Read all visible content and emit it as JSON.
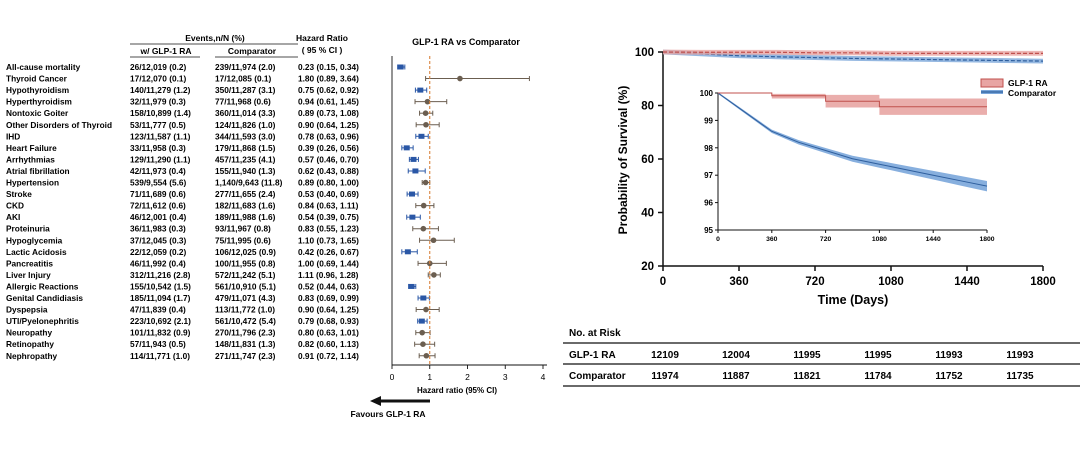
{
  "forest": {
    "header": {
      "events": "Events,n/N (%)",
      "glp1": "w/ GLP-1 RA",
      "comp": "Comparator",
      "hr": "Hazard Ratio",
      "ci": "( 95 % CI )"
    },
    "title": "GLP-1 RA vs Comparator",
    "xlabel": "Hazard ratio (95% CI)",
    "arrow_label": "Favours GLP-1 RA",
    "xticks": [
      "0",
      "1",
      "2",
      "3",
      "4"
    ],
    "xlim": [
      0,
      4
    ],
    "reference_line": 1,
    "colors": {
      "significant": "#2a57a6",
      "nonsignificant": "#6b5e50",
      "reference": "#d9823b"
    },
    "rows": [
      {
        "label": "All-cause mortality",
        "glp1": "26/12,019 (0.2)",
        "comp": "239/11,974 (2.0)",
        "hr_text": "0.23 (0.15, 0.34)",
        "hr": 0.23,
        "lo": 0.15,
        "hi": 0.34
      },
      {
        "label": "Thyroid Cancer",
        "glp1": "17/12,070 (0.1)",
        "comp": "17/12,085 (0.1)",
        "hr_text": "1.80 (0.89, 3.64)",
        "hr": 1.8,
        "lo": 0.89,
        "hi": 3.64
      },
      {
        "label": "Hypothyroidism",
        "glp1": "140/11,279 (1.2)",
        "comp": "350/11,287 (3.1)",
        "hr_text": "0.75 (0.62, 0.92)",
        "hr": 0.75,
        "lo": 0.62,
        "hi": 0.92
      },
      {
        "label": "Hyperthyroidism",
        "glp1": "32/11,979 (0.3)",
        "comp": "77/11,968 (0.6)",
        "hr_text": "0.94 (0.61, 1.45)",
        "hr": 0.94,
        "lo": 0.61,
        "hi": 1.45
      },
      {
        "label": "Nontoxic Goiter",
        "glp1": "158/10,899 (1.4)",
        "comp": "360/11,014 (3.3)",
        "hr_text": "0.89 (0.73, 1.08)",
        "hr": 0.89,
        "lo": 0.73,
        "hi": 1.08
      },
      {
        "label": "Other Disorders of Thyroid",
        "glp1": "53/11,777 (0.5)",
        "comp": "124/11,826 (1.0)",
        "hr_text": "0.90 (0.64, 1.25)",
        "hr": 0.9,
        "lo": 0.64,
        "hi": 1.25
      },
      {
        "label": "IHD",
        "glp1": "123/11,587 (1.1)",
        "comp": "344/11,593 (3.0)",
        "hr_text": "0.78 (0.63, 0.96)",
        "hr": 0.78,
        "lo": 0.63,
        "hi": 0.96
      },
      {
        "label": "Heart Failure",
        "glp1": "33/11,958 (0.3)",
        "comp": "179/11,868 (1.5)",
        "hr_text": "0.39 (0.26, 0.56)",
        "hr": 0.39,
        "lo": 0.26,
        "hi": 0.56
      },
      {
        "label": "Arrhythmias",
        "glp1": "129/11,290 (1.1)",
        "comp": "457/11,235 (4.1)",
        "hr_text": "0.57 (0.46, 0.70)",
        "hr": 0.57,
        "lo": 0.46,
        "hi": 0.7
      },
      {
        "label": "Atrial fibrillation",
        "glp1": "42/11,973 (0.4)",
        "comp": "155/11,940 (1.3)",
        "hr_text": "0.62 (0.43, 0.88)",
        "hr": 0.62,
        "lo": 0.43,
        "hi": 0.88
      },
      {
        "label": "Hypertension",
        "glp1": "539/9,554 (5.6)",
        "comp": "1,140/9,643 (11.8)",
        "hr_text": "0.89 (0.80, 1.00)",
        "hr": 0.89,
        "lo": 0.8,
        "hi": 1.0
      },
      {
        "label": "Stroke",
        "glp1": "71/11,689 (0.6)",
        "comp": "277/11,655 (2.4)",
        "hr_text": "0.53 (0.40, 0.69)",
        "hr": 0.53,
        "lo": 0.4,
        "hi": 0.69
      },
      {
        "label": "CKD",
        "glp1": "72/11,612 (0.6)",
        "comp": "182/11,683 (1.6)",
        "hr_text": "0.84 (0.63, 1.11)",
        "hr": 0.84,
        "lo": 0.63,
        "hi": 1.11
      },
      {
        "label": "AKI",
        "glp1": "46/12,001 (0.4)",
        "comp": "189/11,988 (1.6)",
        "hr_text": "0.54 (0.39, 0.75)",
        "hr": 0.54,
        "lo": 0.39,
        "hi": 0.75
      },
      {
        "label": "Proteinuria",
        "glp1": "36/11,983 (0.3)",
        "comp": "93/11,967 (0.8)",
        "hr_text": "0.83 (0.55, 1.23)",
        "hr": 0.83,
        "lo": 0.55,
        "hi": 1.23
      },
      {
        "label": "Hypoglycemia",
        "glp1": "37/12,045 (0.3)",
        "comp": "75/11,995 (0.6)",
        "hr_text": "1.10 (0.73, 1.65)",
        "hr": 1.1,
        "lo": 0.73,
        "hi": 1.65
      },
      {
        "label": "Lactic Acidosis",
        "glp1": "22/12,059 (0.2)",
        "comp": "106/12,025 (0.9)",
        "hr_text": "0.42 (0.26, 0.67)",
        "hr": 0.42,
        "lo": 0.26,
        "hi": 0.67
      },
      {
        "label": "Pancreatitis",
        "glp1": "46/11,992 (0.4)",
        "comp": "100/11,955 (0.8)",
        "hr_text": "1.00 (0.69, 1.44)",
        "hr": 1.0,
        "lo": 0.69,
        "hi": 1.44
      },
      {
        "label": "Liver Injury",
        "glp1": "312/11,216 (2.8)",
        "comp": "572/11,242 (5.1)",
        "hr_text": "1.11 (0.96, 1.28)",
        "hr": 1.11,
        "lo": 0.96,
        "hi": 1.28
      },
      {
        "label": "Allergic Reactions",
        "glp1": "155/10,542 (1.5)",
        "comp": "561/10,910 (5.1)",
        "hr_text": "0.52 (0.44, 0.63)",
        "hr": 0.52,
        "lo": 0.44,
        "hi": 0.63
      },
      {
        "label": "Genital Candidiasis",
        "glp1": "185/11,094 (1.7)",
        "comp": "479/11,071 (4.3)",
        "hr_text": "0.83 (0.69, 0.99)",
        "hr": 0.83,
        "lo": 0.69,
        "hi": 0.99
      },
      {
        "label": "Dyspepsia",
        "glp1": "47/11,839 (0.4)",
        "comp": "113/11,772 (1.0)",
        "hr_text": "0.90 (0.64, 1.25)",
        "hr": 0.9,
        "lo": 0.64,
        "hi": 1.25
      },
      {
        "label": "UTI/Pyelonephritis",
        "glp1": "223/10,692 (2.1)",
        "comp": "561/10,472 (5.4)",
        "hr_text": "0.79 (0.68, 0.93)",
        "hr": 0.79,
        "lo": 0.68,
        "hi": 0.93
      },
      {
        "label": "Neuropathy",
        "glp1": "101/11,832 (0.9)",
        "comp": "270/11,796 (2.3)",
        "hr_text": "0.80 (0.63, 1.01)",
        "hr": 0.8,
        "lo": 0.63,
        "hi": 1.01
      },
      {
        "label": "Retinopathy",
        "glp1": "57/11,943 (0.5)",
        "comp": "148/11,831 (1.3)",
        "hr_text": "0.82 (0.60, 1.13)",
        "hr": 0.82,
        "lo": 0.6,
        "hi": 1.13
      },
      {
        "label": "Nephropathy",
        "glp1": "114/11,771 (1.0)",
        "comp": "271/11,747 (2.3)",
        "hr_text": "0.91 (0.72, 1.14)",
        "hr": 0.91,
        "lo": 0.72,
        "hi": 1.14
      }
    ]
  },
  "km": {
    "ylabel": "Probability of Survival (%)",
    "xlabel": "Time (Days)",
    "xticks": [
      "0",
      "360",
      "720",
      "1080",
      "1440",
      "1800"
    ],
    "yticks": [
      "20",
      "40",
      "60",
      "80",
      "100"
    ],
    "xlim": [
      0,
      1800
    ],
    "ylim": [
      20,
      100
    ],
    "legend": [
      "GLP-1 RA",
      "Comparator"
    ],
    "colors": {
      "glp1": "#c0504d",
      "glp1_band": "#e8a5a3",
      "comp": "#2f5f9e",
      "comp_band": "#7aa6da"
    },
    "inset": {
      "xticks": [
        "0",
        "360",
        "720",
        "1080",
        "1440",
        "1800"
      ],
      "yticks": [
        "95",
        "96",
        "97",
        "98",
        "99",
        "100"
      ],
      "xlim": [
        0,
        1800
      ],
      "ylim": [
        95,
        100
      ]
    },
    "risk": {
      "title": "No. at Risk",
      "rows": [
        {
          "label": "GLP-1 RA",
          "values": [
            "12109",
            "12004",
            "11995",
            "11995",
            "11993",
            "11993"
          ]
        },
        {
          "label": "Comparator",
          "values": [
            "11974",
            "11887",
            "11821",
            "11784",
            "11752",
            "11735"
          ]
        }
      ]
    }
  },
  "chart_data": [
    {
      "type": "forest",
      "title": "GLP-1 RA vs Comparator",
      "xlabel": "Hazard ratio (95% CI)",
      "xlim": [
        0,
        4
      ],
      "categories": [
        "All-cause mortality",
        "Thyroid Cancer",
        "Hypothyroidism",
        "Hyperthyroidism",
        "Nontoxic Goiter",
        "Other Disorders of Thyroid",
        "IHD",
        "Heart Failure",
        "Arrhythmias",
        "Atrial fibrillation",
        "Hypertension",
        "Stroke",
        "CKD",
        "AKI",
        "Proteinuria",
        "Hypoglycemia",
        "Lactic Acidosis",
        "Pancreatitis",
        "Liver Injury",
        "Allergic Reactions",
        "Genital Candidiasis",
        "Dyspepsia",
        "UTI/Pyelonephritis",
        "Neuropathy",
        "Retinopathy",
        "Nephropathy"
      ],
      "values": [
        0.23,
        1.8,
        0.75,
        0.94,
        0.89,
        0.9,
        0.78,
        0.39,
        0.57,
        0.62,
        0.89,
        0.53,
        0.84,
        0.54,
        0.83,
        1.1,
        0.42,
        1.0,
        1.11,
        0.52,
        0.83,
        0.9,
        0.79,
        0.8,
        0.82,
        0.91
      ]
    },
    {
      "type": "line",
      "title": "",
      "xlabel": "Time (Days)",
      "ylabel": "Probability of Survival (%)",
      "xlim": [
        0,
        1800
      ],
      "ylim": [
        20,
        100
      ],
      "series": [
        {
          "name": "GLP-1 RA",
          "x": [
            0,
            180,
            360,
            540,
            720,
            900,
            1080,
            1260,
            1440,
            1620,
            1800
          ],
          "y": [
            100,
            99.9,
            99.9,
            99.9,
            99.7,
            99.7,
            99.5,
            99.5,
            99.5,
            99.5,
            99.5
          ]
        },
        {
          "name": "Comparator",
          "x": [
            0,
            180,
            360,
            540,
            720,
            900,
            1080,
            1260,
            1440,
            1620,
            1800
          ],
          "y": [
            100,
            99.3,
            98.6,
            98.2,
            97.9,
            97.6,
            97.4,
            97.2,
            97.0,
            96.8,
            96.6
          ]
        }
      ]
    }
  ]
}
